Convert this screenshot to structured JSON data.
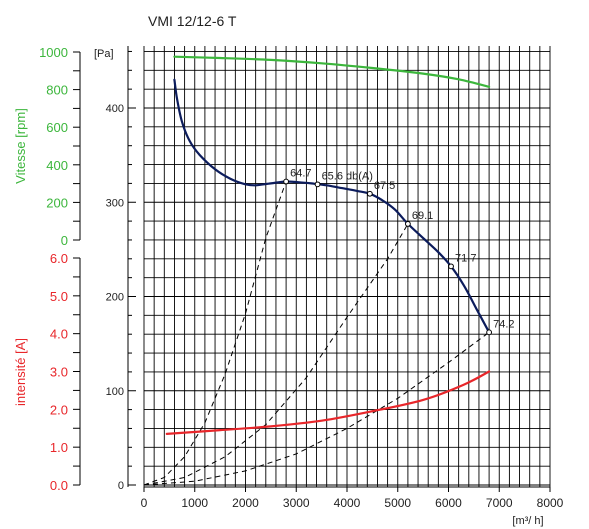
{
  "chart_data": {
    "type": "line",
    "title": "VMI 12/12-6 T",
    "x_axis": {
      "unit_label": "[m³/ h]",
      "range": [
        0,
        8000
      ],
      "ticks": [
        0,
        1000,
        2000,
        3000,
        4000,
        5000,
        6000,
        7000,
        8000
      ],
      "tick_labels": [
        "0",
        "1000",
        "2000",
        "3000",
        "4000",
        "5000",
        "6000",
        "7000",
        "8000"
      ],
      "grid_step": 200
    },
    "pressure_axis": {
      "unit_label": "[Pa]",
      "range": [
        0,
        460
      ],
      "ticks": [
        0,
        100,
        200,
        300,
        400
      ],
      "tick_labels": [
        "0",
        "100",
        "200",
        "300",
        "400"
      ],
      "grid_step": 20
    },
    "speed_axis": {
      "label": "Vitesse [rpm]",
      "color": "#3cb63c",
      "range": [
        0,
        1000
      ],
      "ticks": [
        0,
        200,
        400,
        600,
        800,
        1000
      ],
      "tick_labels": [
        "0",
        "200",
        "400",
        "600",
        "800",
        "1000"
      ]
    },
    "current_axis": {
      "label": "intensité [A]",
      "color": "#e8262a",
      "range": [
        0,
        6
      ],
      "ticks": [
        0,
        1,
        2,
        3,
        4,
        5,
        6
      ],
      "tick_labels": [
        "0.0",
        "1.0",
        "2.0",
        "3.0",
        "4.0",
        "5.0",
        "6.0"
      ]
    },
    "series": [
      {
        "role": "pressure",
        "axis": "pressure",
        "color": "#0c1c5c",
        "points": [
          [
            600,
            430
          ],
          [
            650,
            410
          ],
          [
            750,
            385
          ],
          [
            900,
            365
          ],
          [
            1100,
            350
          ],
          [
            1400,
            335
          ],
          [
            1700,
            325
          ],
          [
            2000,
            319
          ],
          [
            2200,
            318
          ],
          [
            2500,
            320
          ],
          [
            2800,
            322
          ],
          [
            3100,
            321
          ],
          [
            3300,
            320
          ],
          [
            3600,
            318
          ],
          [
            3900,
            315
          ],
          [
            4200,
            312
          ],
          [
            4450,
            309
          ],
          [
            4700,
            302
          ],
          [
            4950,
            292
          ],
          [
            5200,
            277
          ],
          [
            5500,
            262
          ],
          [
            5800,
            247
          ],
          [
            6050,
            232
          ],
          [
            6300,
            212
          ],
          [
            6550,
            187
          ],
          [
            6800,
            162
          ]
        ]
      },
      {
        "role": "speed",
        "axis": "speed",
        "color": "#3cb63c",
        "points": [
          [
            600,
            975
          ],
          [
            1500,
            968
          ],
          [
            2500,
            958
          ],
          [
            3500,
            940
          ],
          [
            4500,
            915
          ],
          [
            5500,
            885
          ],
          [
            6200,
            855
          ],
          [
            6800,
            815
          ]
        ]
      },
      {
        "role": "current",
        "axis": "current",
        "color": "#e8262a",
        "points": [
          [
            450,
            1.35
          ],
          [
            1500,
            1.45
          ],
          [
            2500,
            1.55
          ],
          [
            3500,
            1.7
          ],
          [
            4500,
            1.95
          ],
          [
            5500,
            2.25
          ],
          [
            6300,
            2.65
          ],
          [
            6800,
            3.0
          ]
        ]
      }
    ],
    "noise_labels": [
      {
        "text": "64.7",
        "x": 2800,
        "p": 322
      },
      {
        "text": "65.6 db(A)",
        "x": 3420,
        "p": 319
      },
      {
        "text": "67.5",
        "x": 4450,
        "p": 309
      },
      {
        "text": "69.1",
        "x": 5200,
        "p": 277
      },
      {
        "text": "71.7",
        "x": 6050,
        "p": 232
      },
      {
        "text": "74.2",
        "x": 6800,
        "p": 162
      }
    ],
    "system_curves": [
      [
        [
          0,
          0
        ],
        [
          400,
          8
        ],
        [
          800,
          30
        ],
        [
          1200,
          66
        ],
        [
          1600,
          118
        ],
        [
          2000,
          182
        ],
        [
          2400,
          262
        ],
        [
          2800,
          322
        ]
      ],
      [
        [
          0,
          0
        ],
        [
          800,
          8
        ],
        [
          1600,
          30
        ],
        [
          2400,
          64
        ],
        [
          3200,
          114
        ],
        [
          4000,
          178
        ],
        [
          4800,
          240
        ],
        [
          5200,
          277
        ]
      ],
      [
        [
          0,
          0
        ],
        [
          1000,
          4
        ],
        [
          2000,
          15
        ],
        [
          3000,
          33
        ],
        [
          4000,
          60
        ],
        [
          5000,
          92
        ],
        [
          6000,
          130
        ],
        [
          6800,
          162
        ]
      ]
    ]
  }
}
